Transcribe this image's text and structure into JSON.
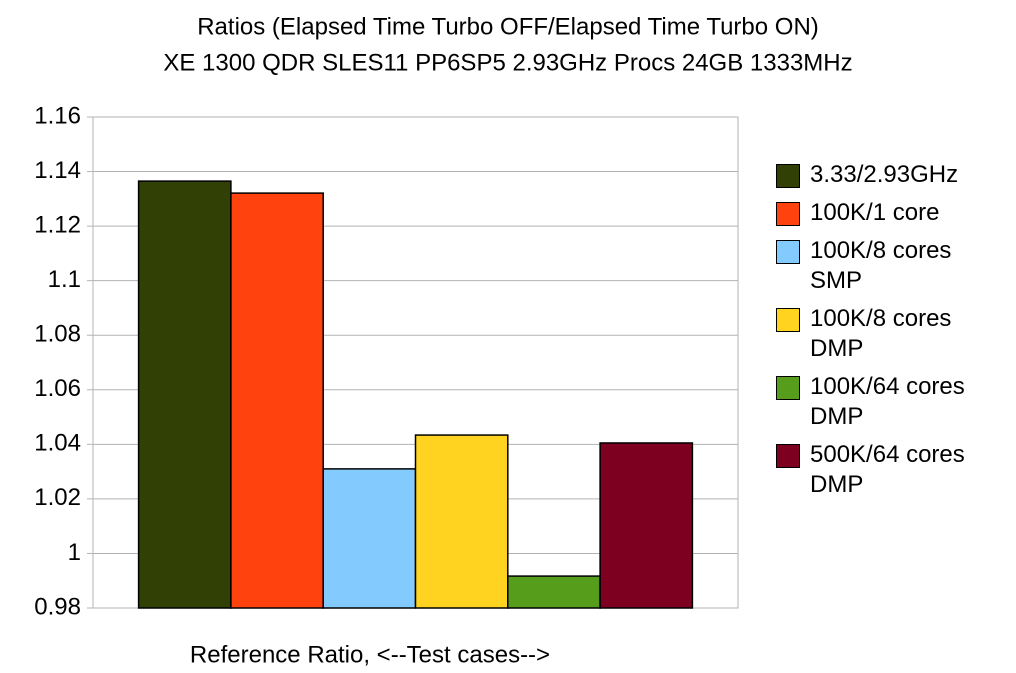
{
  "chart_data": {
    "type": "bar",
    "title": "Ratios (Elapsed Time Turbo OFF/Elapsed Time Turbo ON)",
    "subtitle": "XE 1300 QDR SLES11 PP6SP5 2.93GHz Procs 24GB 1333MHz",
    "x_label": "Reference Ratio, <--Test cases-->",
    "series": [
      {
        "name": "3.33/2.93GHz",
        "color": "#314004",
        "values": [
          1.1365
        ]
      },
      {
        "name": "100K/1 core",
        "color": "#ff420e",
        "values": [
          1.1321
        ]
      },
      {
        "name": "100K/8 cores SMP",
        "color": "#83caff",
        "values": [
          1.031
        ]
      },
      {
        "name": "100K/8 cores DMP",
        "color": "#ffd320",
        "values": [
          1.0434
        ]
      },
      {
        "name": "100K/64 cores DMP",
        "color": "#579d1c",
        "values": [
          0.9917
        ]
      },
      {
        "name": "500K/64 cores DMP",
        "color": "#7e0021",
        "values": [
          1.0405
        ]
      }
    ],
    "ylim": [
      0.98,
      1.16
    ],
    "yticks": [
      0.98,
      1,
      1.02,
      1.04,
      1.06,
      1.08,
      1.1,
      1.12,
      1.14,
      1.16
    ],
    "grid": true,
    "legend": "right"
  }
}
